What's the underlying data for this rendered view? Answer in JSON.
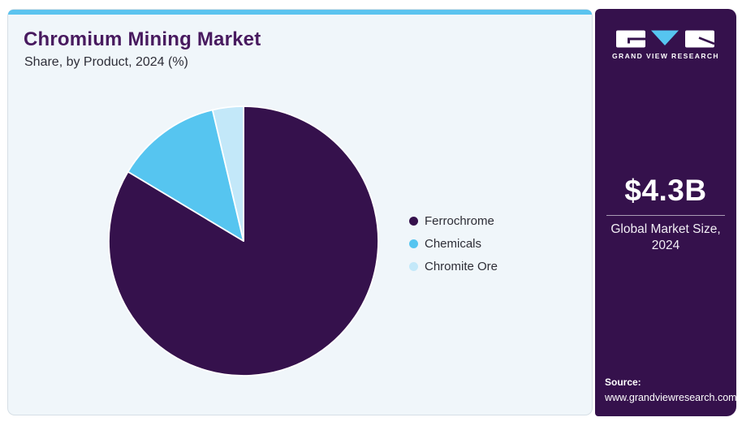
{
  "header": {
    "title": "Chromium Mining Market",
    "subtitle": "Share, by Product, 2024 (%)"
  },
  "chart_data": {
    "type": "pie",
    "title": "Chromium Mining Market Share, by Product, 2024 (%)",
    "series_labels": [
      "Ferrochrome",
      "Chemicals",
      "Chromite Ore"
    ],
    "values": [
      83.6,
      12.7,
      3.7
    ],
    "unit": "%",
    "colors": [
      "#35114c",
      "#56c5f0",
      "#c3e8f9"
    ],
    "start_angle_deg": 0,
    "direction": "clockwise",
    "legend_position": "right",
    "slice_stroke": "#ffffff"
  },
  "sidebar": {
    "logo": {
      "brand": "GRAND VIEW RESEARCH",
      "accent_color": "#56c5f0"
    },
    "market_size": {
      "value": "$4.3B",
      "label_line1": "Global Market Size,",
      "label_line2": "2024"
    },
    "source": {
      "label": "Source:",
      "url": "www.grandviewresearch.com"
    }
  },
  "colors": {
    "brand_purple": "#35114c",
    "title_purple": "#481a5f",
    "accent_blue": "#5bc3ef",
    "card_background": "#f0f6fa",
    "card_border": "#d6dfe6"
  }
}
